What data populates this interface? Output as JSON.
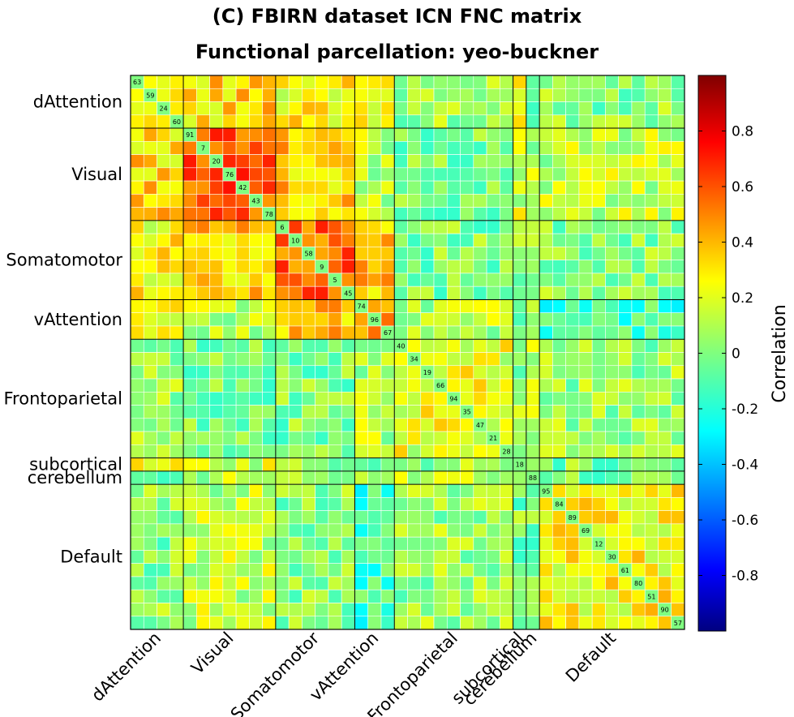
{
  "chart_data": {
    "type": "heatmap",
    "title": "(C) FBIRN dataset ICN FNC matrix",
    "subtitle": "Functional parcellation: yeo-buckner",
    "colorbar_label": "Correlation",
    "colormap": "jet",
    "clim": [
      -1,
      1
    ],
    "colorbar_ticks": [
      0.8,
      0.6,
      0.4,
      0.2,
      0,
      -0.2,
      -0.4,
      -0.6,
      -0.8
    ],
    "networks": [
      {
        "name": "dAttention",
        "size": 4
      },
      {
        "name": "Visual",
        "size": 7
      },
      {
        "name": "Somatomotor",
        "size": 6
      },
      {
        "name": "vAttention",
        "size": 3
      },
      {
        "name": "Frontoparietal",
        "size": 9
      },
      {
        "name": "subcortical",
        "size": 1
      },
      {
        "name": "cerebellum",
        "size": 1
      },
      {
        "name": "Default",
        "size": 11
      }
    ],
    "component_ids": [
      "63",
      "59",
      "24",
      "60",
      "91",
      "7",
      "20",
      "76",
      "42",
      "43",
      "78",
      "6",
      "10",
      "58",
      "9",
      "5",
      "45",
      "74",
      "96",
      "67",
      "40",
      "34",
      "19",
      "66",
      "94",
      "35",
      "47",
      "21",
      "28",
      "18",
      "88",
      "95",
      "84",
      "89",
      "69",
      "12",
      "30",
      "61",
      "80",
      "51",
      "90",
      "57"
    ],
    "block_mean_correlation": [
      [
        0.35,
        0.32,
        0.25,
        0.2,
        0.05,
        0.18,
        0.0,
        0.02
      ],
      [
        0.32,
        0.6,
        0.35,
        0.1,
        0.0,
        0.15,
        0.1,
        0.12
      ],
      [
        0.25,
        0.35,
        0.55,
        0.35,
        0.0,
        0.05,
        0.05,
        0.02
      ],
      [
        0.2,
        0.1,
        0.35,
        0.45,
        0.1,
        0.0,
        0.0,
        -0.12
      ],
      [
        0.05,
        0.0,
        0.0,
        0.1,
        0.2,
        0.05,
        0.15,
        0.05
      ],
      [
        0.18,
        0.15,
        0.05,
        0.0,
        0.05,
        0.0,
        0.05,
        0.0
      ],
      [
        0.0,
        0.1,
        0.05,
        0.0,
        0.15,
        0.05,
        0.0,
        0.0
      ],
      [
        0.02,
        0.12,
        0.02,
        -0.12,
        0.05,
        0.0,
        0.0,
        0.25
      ]
    ]
  }
}
